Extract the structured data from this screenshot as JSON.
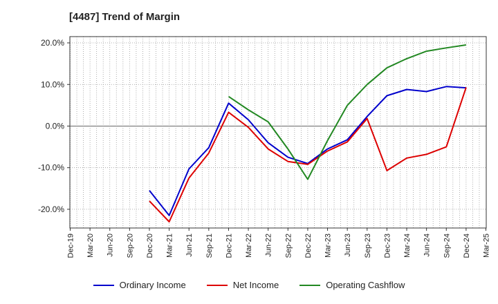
{
  "chart_data": {
    "type": "line",
    "title": "[4487]  Trend of Margin",
    "xlabel": "",
    "ylabel": "",
    "ylim": [
      -24.5,
      21.5
    ],
    "y_ticks": [
      20,
      10,
      0,
      -10,
      -20
    ],
    "y_tick_labels": [
      "20.0%",
      "10.0%",
      "0.0%",
      "-10.0%",
      "-20.0%"
    ],
    "categories": [
      "Dec-19",
      "Mar-20",
      "Jun-20",
      "Sep-20",
      "Dec-20",
      "Mar-21",
      "Jun-21",
      "Sep-21",
      "Dec-21",
      "Mar-22",
      "Jun-22",
      "Sep-22",
      "Dec-22",
      "Mar-23",
      "Jun-23",
      "Sep-23",
      "Dec-23",
      "Mar-24",
      "Jun-24",
      "Sep-24",
      "Dec-24",
      "Mar-25"
    ],
    "grid": true,
    "legend_position": "bottom",
    "series": [
      {
        "name": "Ordinary Income",
        "color": "#0000cc",
        "values": [
          null,
          null,
          null,
          null,
          -15.5,
          -21.5,
          -10.3,
          -5.2,
          5.5,
          1.5,
          -4.0,
          -7.5,
          -9.0,
          -5.5,
          -3.3,
          2.3,
          7.3,
          8.8,
          8.3,
          9.5,
          9.2,
          null
        ]
      },
      {
        "name": "Net Income",
        "color": "#dd0000",
        "values": [
          null,
          null,
          null,
          null,
          -18.0,
          -23.0,
          -12.5,
          -6.5,
          3.3,
          -0.3,
          -5.5,
          -8.5,
          -9.2,
          -6.0,
          -3.8,
          1.8,
          -10.7,
          -7.7,
          -6.8,
          -5.0,
          9.3,
          null
        ]
      },
      {
        "name": "Operating Cashflow",
        "color": "#228822",
        "values": [
          null,
          null,
          null,
          null,
          null,
          null,
          null,
          null,
          7.1,
          3.9,
          1.0,
          -5.5,
          -12.8,
          -3.5,
          5.0,
          10.0,
          14.0,
          16.2,
          18.0,
          18.8,
          19.5,
          null
        ]
      }
    ]
  }
}
